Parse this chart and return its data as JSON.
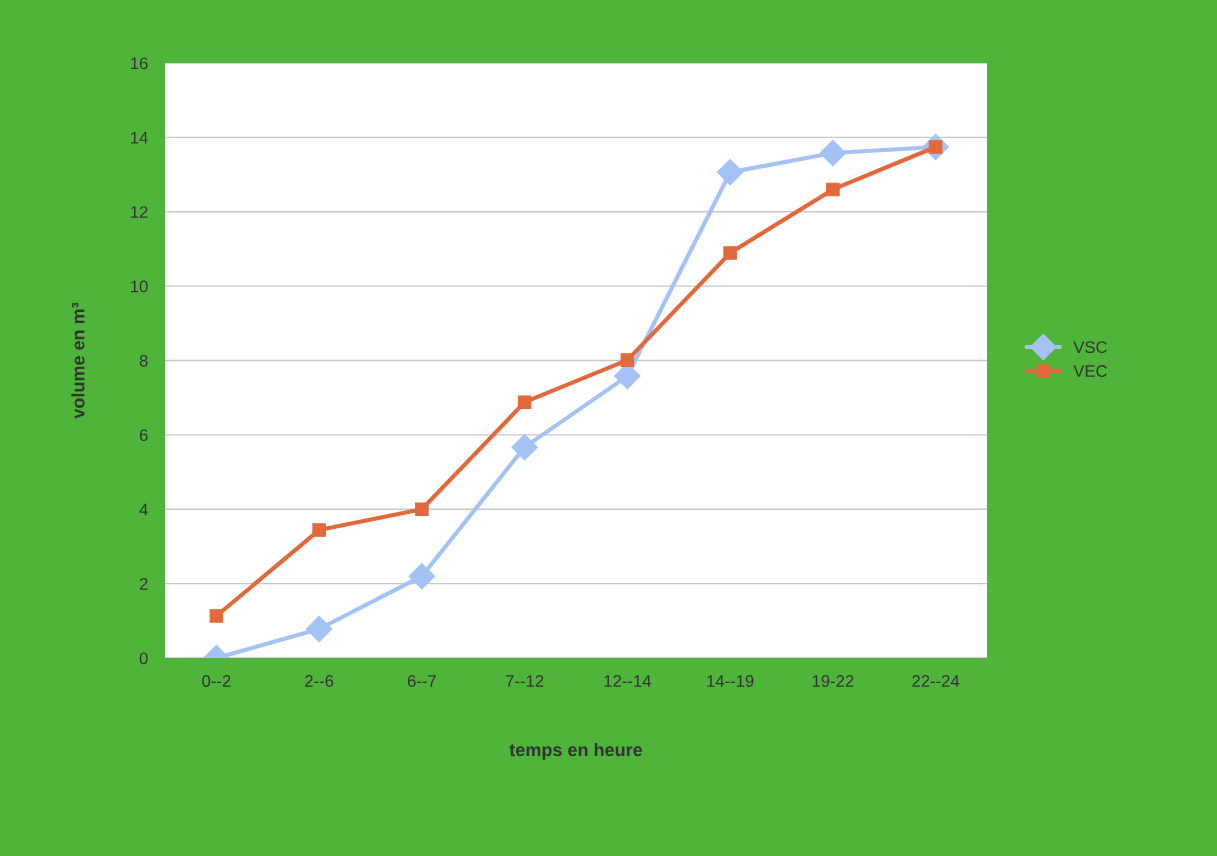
{
  "chart_data": {
    "type": "line",
    "xlabel": "temps en heure",
    "ylabel": "volume en m³",
    "categories": [
      "0--2",
      "2--6",
      "6--7",
      "7--12",
      "12--14",
      "14--19",
      "19-22",
      "22--24"
    ],
    "series": [
      {
        "name": "VSC",
        "color": "#a4c2f4",
        "marker": "diamond",
        "values": [
          0,
          0.78,
          2.2,
          5.67,
          7.58,
          13.06,
          13.58,
          13.74
        ]
      },
      {
        "name": "VEC",
        "color": "#e2693b",
        "marker": "square",
        "values": [
          1.13,
          3.44,
          4.0,
          6.88,
          8.01,
          10.89,
          12.6,
          13.74
        ]
      }
    ],
    "ylim": [
      0,
      16
    ],
    "yticks": [
      0,
      2,
      4,
      6,
      8,
      10,
      12,
      14,
      16
    ],
    "grid": "y",
    "legend": "right",
    "line_style": "solid"
  }
}
